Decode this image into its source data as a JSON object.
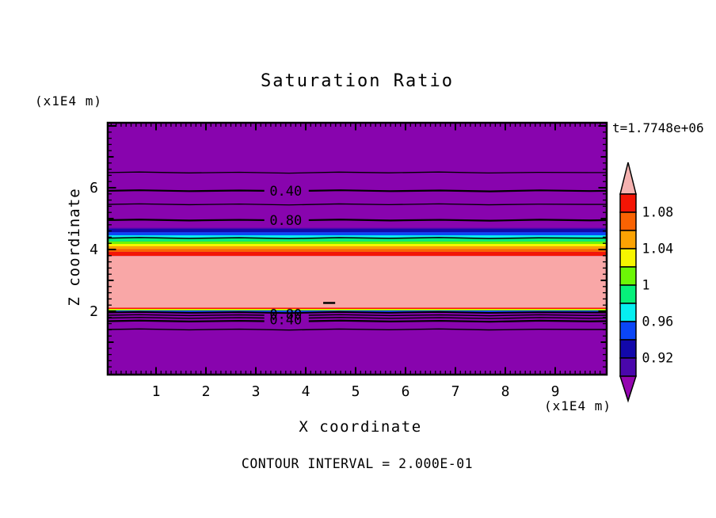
{
  "title": "Saturation Ratio",
  "annotations": {
    "time": "t=1.7748e+06",
    "contour_interval": "CONTOUR INTERVAL = 2.000E-01"
  },
  "axes": {
    "x": {
      "label": "X coordinate",
      "unit": "(x1E4 m)",
      "tick_values": [
        1,
        2,
        3,
        4,
        5,
        6,
        7,
        8,
        9
      ],
      "tick_labels": [
        "1",
        "2",
        "3",
        "4",
        "5",
        "6",
        "7",
        "8",
        "9"
      ],
      "minor_step": 0.1,
      "range": [
        0,
        10
      ]
    },
    "y": {
      "label": "Z coordinate",
      "unit": "(x1E4 m)",
      "tick_values": [
        6,
        4,
        2
      ],
      "tick_labels": [
        "6",
        "4",
        "2"
      ],
      "minor_step": 0.2,
      "range": [
        0,
        8.1
      ]
    }
  },
  "colorbar": {
    "over_color": "#F5B2B0",
    "under_color": "#9405B0",
    "cells": [
      {
        "range": [
          1.08,
          1.1
        ],
        "color": "#F41505"
      },
      {
        "range": [
          1.06,
          1.08
        ],
        "color": "#F96303"
      },
      {
        "range": [
          1.04,
          1.06
        ],
        "color": "#FCA303"
      },
      {
        "range": [
          1.02,
          1.04
        ],
        "color": "#F7F500"
      },
      {
        "range": [
          1.0,
          1.02
        ],
        "color": "#6CF606"
      },
      {
        "range": [
          0.98,
          1.0
        ],
        "color": "#06F07A"
      },
      {
        "range": [
          0.96,
          0.98
        ],
        "color": "#06EFF0"
      },
      {
        "range": [
          0.94,
          0.96
        ],
        "color": "#0B46F6"
      },
      {
        "range": [
          0.92,
          0.94
        ],
        "color": "#1208AA"
      },
      {
        "range": [
          0.9,
          0.92
        ],
        "color": "#4A07AC"
      }
    ],
    "labels": [
      {
        "text": "1.08",
        "value": 1.08
      },
      {
        "text": "1.04",
        "value": 1.04
      },
      {
        "text": "1",
        "value": 1.0
      },
      {
        "text": "0.96",
        "value": 0.96
      },
      {
        "text": "0.92",
        "value": 0.92
      }
    ]
  },
  "chart_data": {
    "type": "heatmap",
    "subtype": "filled-contour",
    "title": "Saturation Ratio",
    "xlabel": "X coordinate (x1E4 m)",
    "ylabel": "Z coordinate (x1E4 m)",
    "x_range": [
      0,
      10
    ],
    "z_range": [
      0,
      8.1
    ],
    "time_annotation": "t=1.7748e+06",
    "contour_interval": 0.2,
    "field_color": "#8804AE",
    "field_value_range": "below 0.90",
    "bands": [
      {
        "color": "#4A07AC",
        "z_top": 4.7,
        "z_bottom": 4.665,
        "value_range": [
          0.9,
          0.92
        ]
      },
      {
        "color": "#1208AA",
        "z_top": 4.665,
        "z_bottom": 4.56,
        "value_range": [
          0.92,
          0.94
        ]
      },
      {
        "color": "#0B46F6",
        "z_top": 4.56,
        "z_bottom": 4.46,
        "value_range": [
          0.94,
          0.96
        ]
      },
      {
        "color": "#06EFF0",
        "z_top": 4.46,
        "z_bottom": 4.36,
        "value_range": [
          0.96,
          0.98
        ]
      },
      {
        "color": "#06F07A",
        "z_top": 4.36,
        "z_bottom": 4.26,
        "value_range": [
          0.98,
          1.0
        ]
      },
      {
        "color": "#6CF606",
        "z_top": 4.26,
        "z_bottom": 4.18,
        "value_range": [
          1.0,
          1.02
        ]
      },
      {
        "color": "#F7F500",
        "z_top": 4.18,
        "z_bottom": 4.1,
        "value_range": [
          1.02,
          1.04
        ]
      },
      {
        "color": "#FCA303",
        "z_top": 4.1,
        "z_bottom": 4.01,
        "value_range": [
          1.04,
          1.06
        ]
      },
      {
        "color": "#F96303",
        "z_top": 4.01,
        "z_bottom": 3.92,
        "value_range": [
          1.06,
          1.08
        ]
      },
      {
        "color": "#F41505",
        "z_top": 3.92,
        "z_bottom": 3.79,
        "value_range": [
          1.08,
          1.1
        ]
      },
      {
        "color": "#F9A7A7",
        "z_top": 3.79,
        "z_bottom": 2.115,
        "value_range": [
          1.1,
          null
        ]
      },
      {
        "color": "#F41505",
        "z_top": 2.115,
        "z_bottom": 2.077,
        "value_range": [
          1.08,
          1.1
        ]
      },
      {
        "color": "#F7F500",
        "z_top": 2.077,
        "z_bottom": 2.05,
        "value_range": [
          1.02,
          1.04
        ]
      },
      {
        "color": "#6CF606",
        "z_top": 2.05,
        "z_bottom": 2.02,
        "value_range": [
          1.0,
          1.02
        ]
      },
      {
        "color": "#0B46F6",
        "z_top": 2.02,
        "z_bottom": 1.96,
        "value_range": [
          0.94,
          0.96
        ]
      }
    ],
    "contour_lines": [
      {
        "level": 0.2,
        "z": 6.49,
        "weight": 1.3
      },
      {
        "level": 0.4,
        "z": 5.9,
        "weight": 2.2,
        "gap": [
          3.17,
          4.06
        ]
      },
      {
        "level": 0.6,
        "z": 5.46,
        "weight": 1.3
      },
      {
        "level": 0.8,
        "z": 4.95,
        "weight": 2.2,
        "gap": [
          3.17,
          4.06
        ]
      },
      {
        "level": 1.0,
        "z": 4.37,
        "weight": 1.5
      },
      {
        "level": 1.0,
        "z": 1.961,
        "weight": 2.0
      },
      {
        "level": 0.8,
        "z": 1.872,
        "weight": 1.4,
        "gap": [
          3.17,
          4.06
        ]
      },
      {
        "level": 0.6,
        "z": 1.782,
        "weight": 1.4,
        "gap": [
          3.17,
          4.06
        ]
      },
      {
        "level": 0.4,
        "z": 1.68,
        "weight": 2.2,
        "gap": [
          3.17,
          4.06
        ]
      },
      {
        "level": 0.2,
        "z": 1.41,
        "weight": 1.4
      }
    ],
    "contour_labels": [
      {
        "text": "0.40",
        "x": 3.6,
        "z": 5.9
      },
      {
        "text": "0.80",
        "x": 3.6,
        "z": 4.95
      },
      {
        "text": "0.80",
        "x": 3.6,
        "z": 1.91
      },
      {
        "text": "0.40",
        "x": 3.6,
        "z": 1.73
      }
    ],
    "contour_fragment": {
      "x1": 4.35,
      "x2": 4.59,
      "z": 2.27
    }
  }
}
